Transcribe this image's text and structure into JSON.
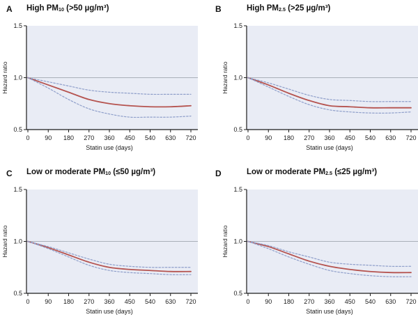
{
  "figure": {
    "panels": [
      {
        "label": "A",
        "title": {
          "pre": "High PM",
          "sub": "10",
          "post": " (>50 µg/m³)"
        }
      },
      {
        "label": "B",
        "title": {
          "pre": "High PM",
          "sub": "2.5",
          "post": " (>25 µg/m³)"
        }
      },
      {
        "label": "C",
        "title": {
          "pre": "Low or moderate PM",
          "sub": "10",
          "post": " (≤50 µg/m³)"
        }
      },
      {
        "label": "D",
        "title": {
          "pre": "Low or moderate PM",
          "sub": "2.5",
          "post": " (≤25 µg/m³)"
        }
      }
    ]
  },
  "style": {
    "red": "#b5534f",
    "blue_dashed": "#8f9fca",
    "plot_bg": "#e9ecf5",
    "ref_line": "#aab0b8",
    "axis": "#1c1c1c",
    "text": "#1c1c1c"
  },
  "chart_data": [
    {
      "type": "line",
      "panel": "A",
      "title": "High PM10 (>50 µg/m³)",
      "xlabel": "Statin use (days)",
      "ylabel": "Hazard ratio",
      "xlim": [
        0,
        720
      ],
      "ylim": [
        0.5,
        1.5
      ],
      "xticks": [
        0,
        90,
        180,
        270,
        360,
        450,
        540,
        630,
        720
      ],
      "yticks": [
        0.5,
        1.0,
        1.5
      ],
      "ref_line": 1.0,
      "grid": false,
      "legend": "none",
      "x": [
        0,
        90,
        180,
        270,
        360,
        450,
        540,
        630,
        720
      ],
      "series": [
        {
          "name": "hazard-ratio",
          "style": "solid",
          "color_key": "red",
          "values": [
            1.0,
            0.93,
            0.86,
            0.79,
            0.75,
            0.73,
            0.72,
            0.72,
            0.73
          ]
        },
        {
          "name": "upper-dashed",
          "style": "dashed",
          "color_key": "blue_dashed",
          "values": [
            1.0,
            0.96,
            0.92,
            0.88,
            0.86,
            0.85,
            0.84,
            0.84,
            0.84
          ]
        },
        {
          "name": "lower-dashed",
          "style": "dashed",
          "color_key": "blue_dashed",
          "values": [
            1.0,
            0.9,
            0.79,
            0.7,
            0.65,
            0.62,
            0.62,
            0.62,
            0.63
          ]
        }
      ]
    },
    {
      "type": "line",
      "panel": "B",
      "title": "High PM2.5 (>25 µg/m³)",
      "xlabel": "Statin use (days)",
      "ylabel": "Hazard ratio",
      "xlim": [
        0,
        720
      ],
      "ylim": [
        0.5,
        1.5
      ],
      "xticks": [
        0,
        90,
        180,
        270,
        360,
        450,
        540,
        630,
        720
      ],
      "yticks": [
        0.5,
        1.0,
        1.5
      ],
      "ref_line": 1.0,
      "grid": false,
      "legend": "none",
      "x": [
        0,
        90,
        180,
        270,
        360,
        450,
        540,
        630,
        720
      ],
      "series": [
        {
          "name": "hazard-ratio",
          "style": "solid",
          "color_key": "red",
          "values": [
            1.0,
            0.93,
            0.85,
            0.78,
            0.73,
            0.72,
            0.71,
            0.71,
            0.71
          ]
        },
        {
          "name": "upper-dashed",
          "style": "dashed",
          "color_key": "blue_dashed",
          "values": [
            1.0,
            0.95,
            0.89,
            0.83,
            0.79,
            0.78,
            0.77,
            0.77,
            0.77
          ]
        },
        {
          "name": "lower-dashed",
          "style": "dashed",
          "color_key": "blue_dashed",
          "values": [
            1.0,
            0.91,
            0.82,
            0.74,
            0.69,
            0.67,
            0.66,
            0.66,
            0.67
          ]
        }
      ]
    },
    {
      "type": "line",
      "panel": "C",
      "title": "Low or moderate PM10 (≤50 µg/m³)",
      "xlabel": "Statin use (days)",
      "ylabel": "Hazard ratio",
      "xlim": [
        0,
        720
      ],
      "ylim": [
        0.5,
        1.5
      ],
      "xticks": [
        0,
        90,
        180,
        270,
        360,
        450,
        540,
        630,
        720
      ],
      "yticks": [
        0.5,
        1.0,
        1.5
      ],
      "ref_line": 1.0,
      "grid": false,
      "legend": "none",
      "x": [
        0,
        90,
        180,
        270,
        360,
        450,
        540,
        630,
        720
      ],
      "series": [
        {
          "name": "hazard-ratio",
          "style": "solid",
          "color_key": "red",
          "values": [
            1.0,
            0.94,
            0.87,
            0.8,
            0.75,
            0.73,
            0.72,
            0.71,
            0.71
          ]
        },
        {
          "name": "upper-dashed",
          "style": "dashed",
          "color_key": "blue_dashed",
          "values": [
            1.0,
            0.95,
            0.89,
            0.83,
            0.78,
            0.76,
            0.75,
            0.75,
            0.75
          ]
        },
        {
          "name": "lower-dashed",
          "style": "dashed",
          "color_key": "blue_dashed",
          "values": [
            1.0,
            0.93,
            0.85,
            0.77,
            0.72,
            0.7,
            0.69,
            0.68,
            0.68
          ]
        }
      ]
    },
    {
      "type": "line",
      "panel": "D",
      "title": "Low or moderate PM2.5 (≤25 µg/m³)",
      "xlabel": "Statin use (days)",
      "ylabel": "Hazard ratio",
      "xlim": [
        0,
        720
      ],
      "ylim": [
        0.5,
        1.5
      ],
      "xticks": [
        0,
        90,
        180,
        270,
        360,
        450,
        540,
        630,
        720
      ],
      "yticks": [
        0.5,
        1.0,
        1.5
      ],
      "ref_line": 1.0,
      "grid": false,
      "legend": "none",
      "x": [
        0,
        90,
        180,
        270,
        360,
        450,
        540,
        630,
        720
      ],
      "series": [
        {
          "name": "hazard-ratio",
          "style": "solid",
          "color_key": "red",
          "values": [
            1.0,
            0.95,
            0.88,
            0.81,
            0.76,
            0.73,
            0.71,
            0.7,
            0.7
          ]
        },
        {
          "name": "upper-dashed",
          "style": "dashed",
          "color_key": "blue_dashed",
          "values": [
            1.0,
            0.96,
            0.9,
            0.85,
            0.8,
            0.78,
            0.77,
            0.76,
            0.76
          ]
        },
        {
          "name": "lower-dashed",
          "style": "dashed",
          "color_key": "blue_dashed",
          "values": [
            1.0,
            0.93,
            0.85,
            0.78,
            0.72,
            0.69,
            0.67,
            0.66,
            0.66
          ]
        }
      ]
    }
  ]
}
